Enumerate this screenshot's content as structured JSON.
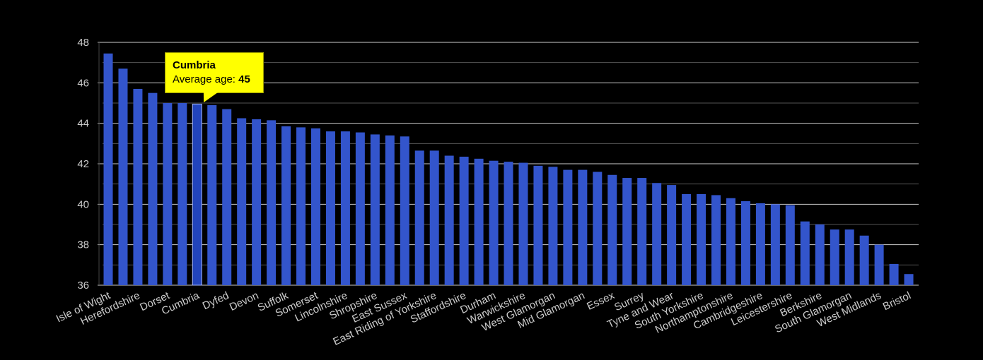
{
  "chart_data": {
    "type": "bar",
    "title": "",
    "xlabel": "",
    "ylabel": "",
    "ylim": [
      36,
      48
    ],
    "yticks": [
      36,
      38,
      40,
      42,
      44,
      46,
      48
    ],
    "grid": true,
    "bar_color": "#3355cc",
    "highlight_color": "#2244bb",
    "categories": [
      "Isle of Wight",
      "",
      "Herefordshire",
      "",
      "Dorset",
      "",
      "Cumbria",
      "",
      "Dyfed",
      "",
      "Devon",
      "",
      "Suffolk",
      "",
      "Somerset",
      "",
      "Lincolnshire",
      "",
      "Shropshire",
      "",
      "East Sussex",
      "",
      "East Riding of Yorkshire",
      "",
      "Staffordshire",
      "",
      "Durham",
      "",
      "Warwickshire",
      "",
      "West Glamorgan",
      "",
      "Mid Glamorgan",
      "",
      "Essex",
      "",
      "Surrey",
      "",
      "Tyne and Wear",
      "",
      "South Yorkshire",
      "",
      "Northamptonshire",
      "",
      "Cambridgeshire",
      "",
      "Leicestershire",
      "",
      "Berkshire",
      "",
      "South Glamorgan",
      "",
      "West Midlands",
      "",
      "Bristol"
    ],
    "values": [
      47.45,
      46.7,
      45.7,
      45.5,
      45.0,
      45.0,
      44.95,
      44.9,
      44.7,
      44.25,
      44.2,
      44.15,
      43.85,
      43.8,
      43.75,
      43.6,
      43.6,
      43.55,
      43.45,
      43.4,
      43.35,
      42.65,
      42.65,
      42.4,
      42.35,
      42.25,
      42.15,
      42.1,
      42.05,
      41.9,
      41.85,
      41.7,
      41.7,
      41.6,
      41.45,
      41.3,
      41.3,
      41.05,
      40.95,
      40.5,
      40.5,
      40.45,
      40.3,
      40.15,
      40.05,
      40.0,
      39.95,
      39.15,
      39.0,
      38.75,
      38.75,
      38.45,
      38.0,
      37.05,
      36.55
    ],
    "highlight_index": 6
  },
  "tooltip": {
    "title": "Cumbria",
    "label": "Average age: ",
    "value": "45"
  }
}
